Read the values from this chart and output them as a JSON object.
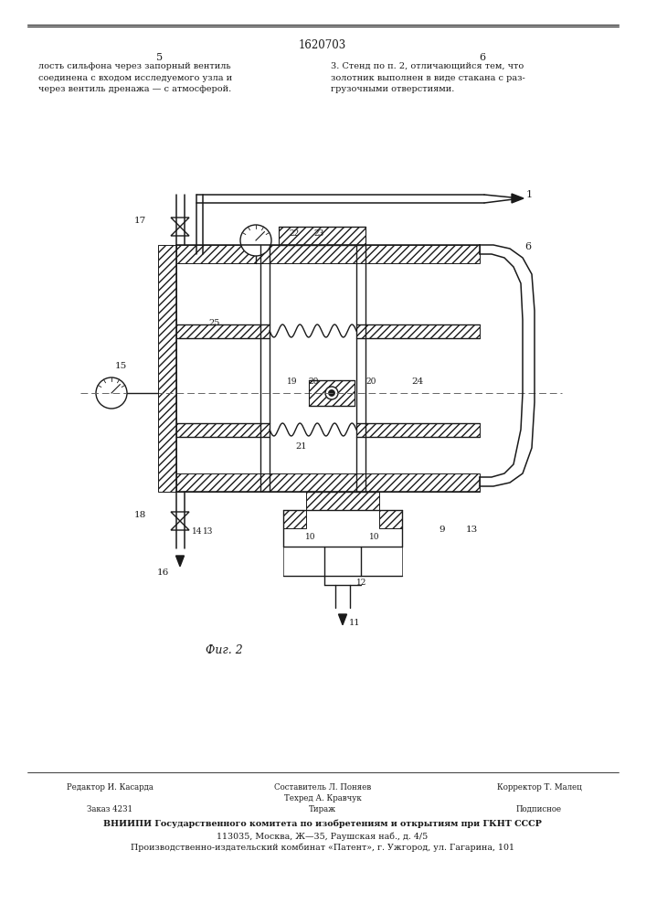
{
  "page_number_center": "1620703",
  "page_col_left": "5",
  "page_col_right": "6",
  "text_left": "лость сильфона через запорный вентиль\nсоединена с входом исследуемого узла и\nчерез вентиль дренажа — с атмосферой.",
  "text_right": "3. Стенд по п. 2, отличающийся тем, что\nзолотник выполнен в виде стакана с раз-\nгрузочными отверстиями.",
  "fig_caption": "Фиг. 2",
  "footer_line1a": "Редактор И. Касарда",
  "footer_line1b": "Составитель Л. Поняев",
  "footer_line1c": "Корректор Т. Малец",
  "footer_line2a": "Заказ 4231",
  "footer_line2b": "Тираж",
  "footer_line2c": "Подписное",
  "footer_line3": "ВНИИПИ Государственного комитета по изобретениям и открытиям при ГКНТ СССР",
  "footer_line4": "113035, Москва, Ж—35, Раушская наб., д. 4/5",
  "footer_line5": "Производственно-издательский комбинат «Патент», г. Ужгород, ул. Гагарина, 101",
  "bg_color": "#ffffff",
  "line_color": "#1a1a1a",
  "text_color": "#1a1a1a"
}
